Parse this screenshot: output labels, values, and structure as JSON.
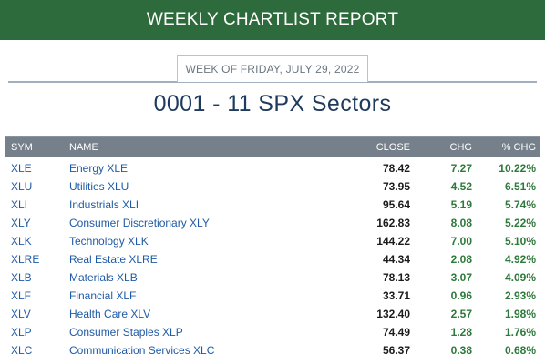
{
  "banner": {
    "title": "WEEKLY CHARTLIST REPORT"
  },
  "week": {
    "label": "WEEK OF FRIDAY, JULY 29, 2022"
  },
  "report": {
    "title": "0001 - 11 SPX Sectors"
  },
  "table": {
    "headers": {
      "sym": "SYM",
      "name": "NAME",
      "close": "CLOSE",
      "chg": "CHG",
      "pct": "% CHG"
    },
    "rows": [
      {
        "sym": "XLE",
        "name": "Energy XLE",
        "close": "78.42",
        "chg": "7.27",
        "pct": "10.22%"
      },
      {
        "sym": "XLU",
        "name": "Utilities XLU",
        "close": "73.95",
        "chg": "4.52",
        "pct": "6.51%"
      },
      {
        "sym": "XLI",
        "name": "Industrials XLI",
        "close": "95.64",
        "chg": "5.19",
        "pct": "5.74%"
      },
      {
        "sym": "XLY",
        "name": "Consumer Discretionary XLY",
        "close": "162.83",
        "chg": "8.08",
        "pct": "5.22%"
      },
      {
        "sym": "XLK",
        "name": "Technology XLK",
        "close": "144.22",
        "chg": "7.00",
        "pct": "5.10%"
      },
      {
        "sym": "XLRE",
        "name": "Real Estate XLRE",
        "close": "44.34",
        "chg": "2.08",
        "pct": "4.92%"
      },
      {
        "sym": "XLB",
        "name": "Materials XLB",
        "close": "78.13",
        "chg": "3.07",
        "pct": "4.09%"
      },
      {
        "sym": "XLF",
        "name": "Financial XLF",
        "close": "33.71",
        "chg": "0.96",
        "pct": "2.93%"
      },
      {
        "sym": "XLV",
        "name": "Health Care XLV",
        "close": "132.40",
        "chg": "2.57",
        "pct": "1.98%"
      },
      {
        "sym": "XLP",
        "name": "Consumer Staples XLP",
        "close": "74.49",
        "chg": "1.28",
        "pct": "1.76%"
      },
      {
        "sym": "XLC",
        "name": "Communication Services XLC",
        "close": "56.37",
        "chg": "0.38",
        "pct": "0.68%"
      }
    ]
  },
  "colors": {
    "banner": "#2e6b3c",
    "title": "#1e3a5c",
    "link": "#1f5aa6",
    "positive": "#2d7a3a",
    "header_bg": "#75808b"
  }
}
